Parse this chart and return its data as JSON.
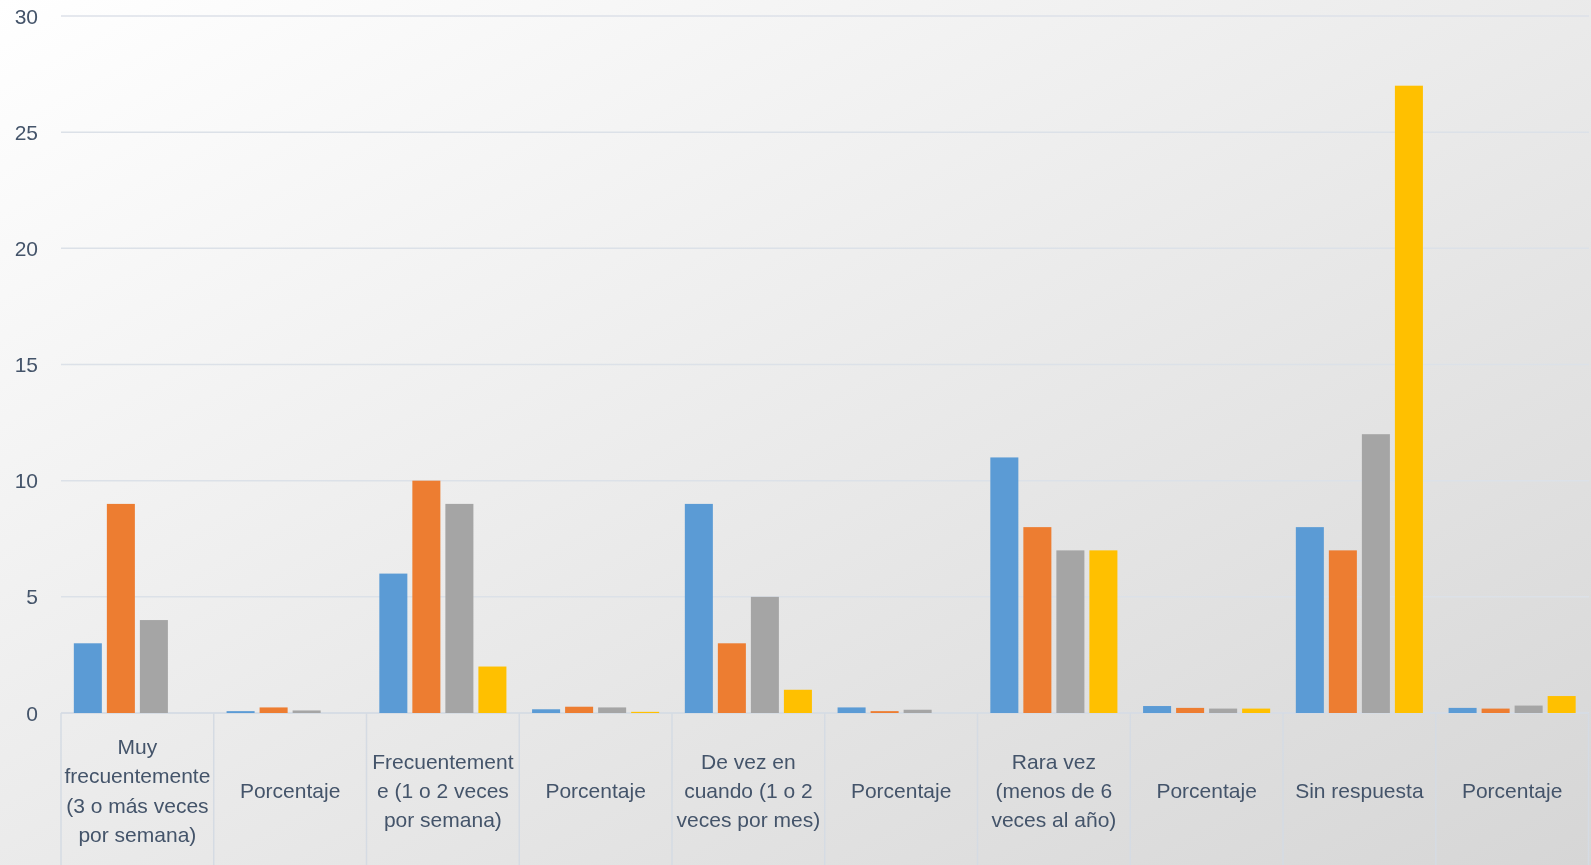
{
  "chart_data": {
    "type": "bar",
    "categories": [
      "Muy frecuentemente (3 o más veces por semana)",
      "Porcentaje",
      "Frecuentemente (1 o 2 veces por semana)",
      "Porcentaje",
      "De vez en cuando (1 o 2 veces por mes)",
      "Porcentaje",
      "Rara vez (menos de 6 veces al año)",
      "Porcentaje",
      "Sin respuesta",
      "Porcentaje"
    ],
    "series": [
      {
        "color": "#5b9bd5",
        "values": [
          3,
          0.08,
          6,
          0.16,
          9,
          0.24,
          11,
          0.3,
          8,
          0.22
        ]
      },
      {
        "color": "#ed7d31",
        "values": [
          9,
          0.24,
          10,
          0.27,
          3,
          0.08,
          8,
          0.22,
          7,
          0.19
        ]
      },
      {
        "color": "#a5a5a5",
        "values": [
          4,
          0.11,
          9,
          0.24,
          5,
          0.14,
          7,
          0.19,
          12,
          0.32
        ]
      },
      {
        "color": "#ffc000",
        "values": [
          0,
          0,
          2,
          0.05,
          1,
          0,
          7,
          0.19,
          27,
          0.73
        ]
      }
    ],
    "ylim": [
      0,
      30
    ],
    "yticks": [
      0,
      5,
      10,
      15,
      20,
      25,
      30
    ],
    "grid": "y"
  }
}
